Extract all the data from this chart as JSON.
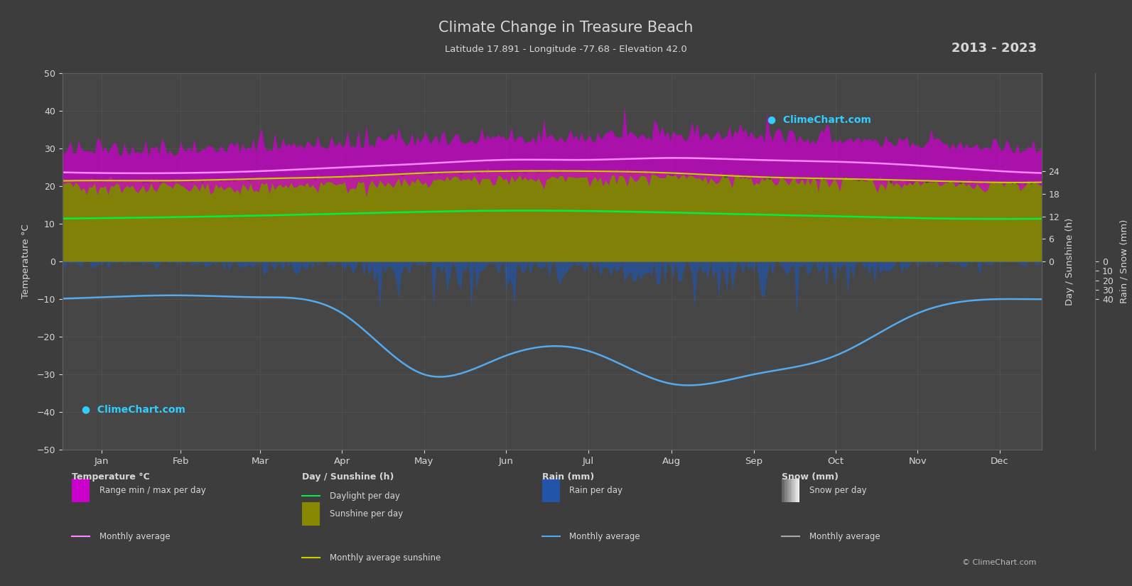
{
  "title": "Climate Change in Treasure Beach",
  "subtitle": "Latitude 17.891 - Longitude -77.68 - Elevation 42.0",
  "years_label": "2013 - 2023",
  "background_color": "#3d3d3d",
  "plot_bg_color": "#464646",
  "grid_color": "#5a5a5a",
  "text_color": "#d8d8d8",
  "months": [
    "Jan",
    "Feb",
    "Mar",
    "Apr",
    "May",
    "Jun",
    "Jul",
    "Aug",
    "Sep",
    "Oct",
    "Nov",
    "Dec"
  ],
  "month_centers": [
    15.5,
    45,
    74.5,
    105,
    135.5,
    166,
    196.5,
    227.5,
    258,
    288.5,
    319,
    349.5
  ],
  "temp_ylim": [
    -50,
    50
  ],
  "temp_avg_monthly": [
    23.5,
    23.5,
    24.0,
    25.0,
    26.0,
    27.0,
    27.0,
    27.5,
    27.0,
    26.5,
    25.5,
    24.0
  ],
  "temp_max_monthly": [
    28.0,
    28.0,
    29.0,
    30.0,
    30.5,
    31.0,
    31.5,
    32.0,
    31.5,
    31.0,
    30.0,
    29.0
  ],
  "temp_min_monthly": [
    21.0,
    21.0,
    21.0,
    21.5,
    22.5,
    23.0,
    23.0,
    23.5,
    23.0,
    22.5,
    22.0,
    21.5
  ],
  "daylight_monthly": [
    11.5,
    11.8,
    12.2,
    12.7,
    13.2,
    13.5,
    13.4,
    13.0,
    12.5,
    12.0,
    11.5,
    11.3
  ],
  "sunshine_monthly": [
    21.5,
    21.5,
    22.0,
    22.5,
    23.5,
    24.0,
    24.0,
    23.5,
    22.5,
    22.0,
    21.5,
    21.0
  ],
  "rain_avg_mm_monthly": [
    38,
    36,
    38,
    55,
    120,
    100,
    95,
    130,
    120,
    100,
    55,
    40
  ],
  "rain_max_mm": 200,
  "noise_seed": 42,
  "color_temp_range": "#cc00cc",
  "color_temp_avg": "#ff88ff",
  "color_daylight": "#00ee44",
  "color_sunshine_fill": "#888800",
  "color_sunshine_line": "#cccc00",
  "color_rain_fill": "#2255aa",
  "color_rain_avg": "#55aaee",
  "color_snow_fill": "#778899",
  "color_snow_avg": "#aabbcc",
  "logo_color": "#33ccff",
  "copyright_text": "© ClimeChart.com"
}
